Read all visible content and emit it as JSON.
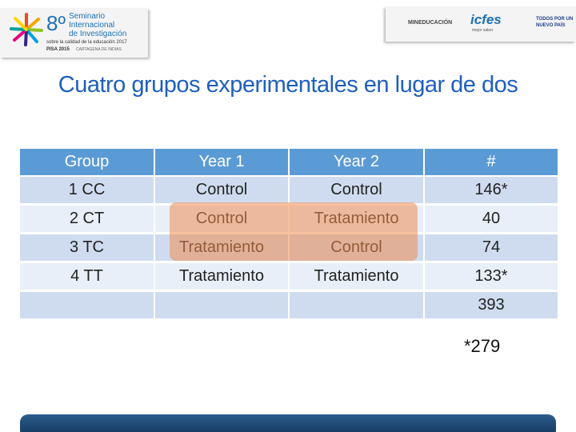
{
  "header": {
    "seminar": {
      "number": "8º",
      "lines": [
        "Seminario",
        "Internacional",
        "de Investigación"
      ],
      "subtitle": "sobre la calidad de la educación 2017",
      "pisa": "PISA 2015",
      "place": "CARTAGENA DE INDIAS"
    },
    "partners": {
      "mineducacion": "MINEDUCACIÓN",
      "icfes": "icfes",
      "icfes_tagline": "mejor saber",
      "gov": [
        "TODOS POR UN",
        "NUEVO PAÍS"
      ]
    }
  },
  "title": "Cuatro grupos experimentales en lugar de dos",
  "table": {
    "header": [
      "Group",
      "Year 1",
      "Year 2",
      "#"
    ],
    "rows": [
      [
        "1 CC",
        "Control",
        "Control",
        "146*"
      ],
      [
        "2 CT",
        "Control",
        "Tratamiento",
        "40"
      ],
      [
        "3 TC",
        "Tratamiento",
        "Control",
        "74"
      ],
      [
        "4 TT",
        "Tratamiento",
        "Tratamiento",
        "133*"
      ]
    ],
    "total": "393"
  },
  "footnote": "*279"
}
